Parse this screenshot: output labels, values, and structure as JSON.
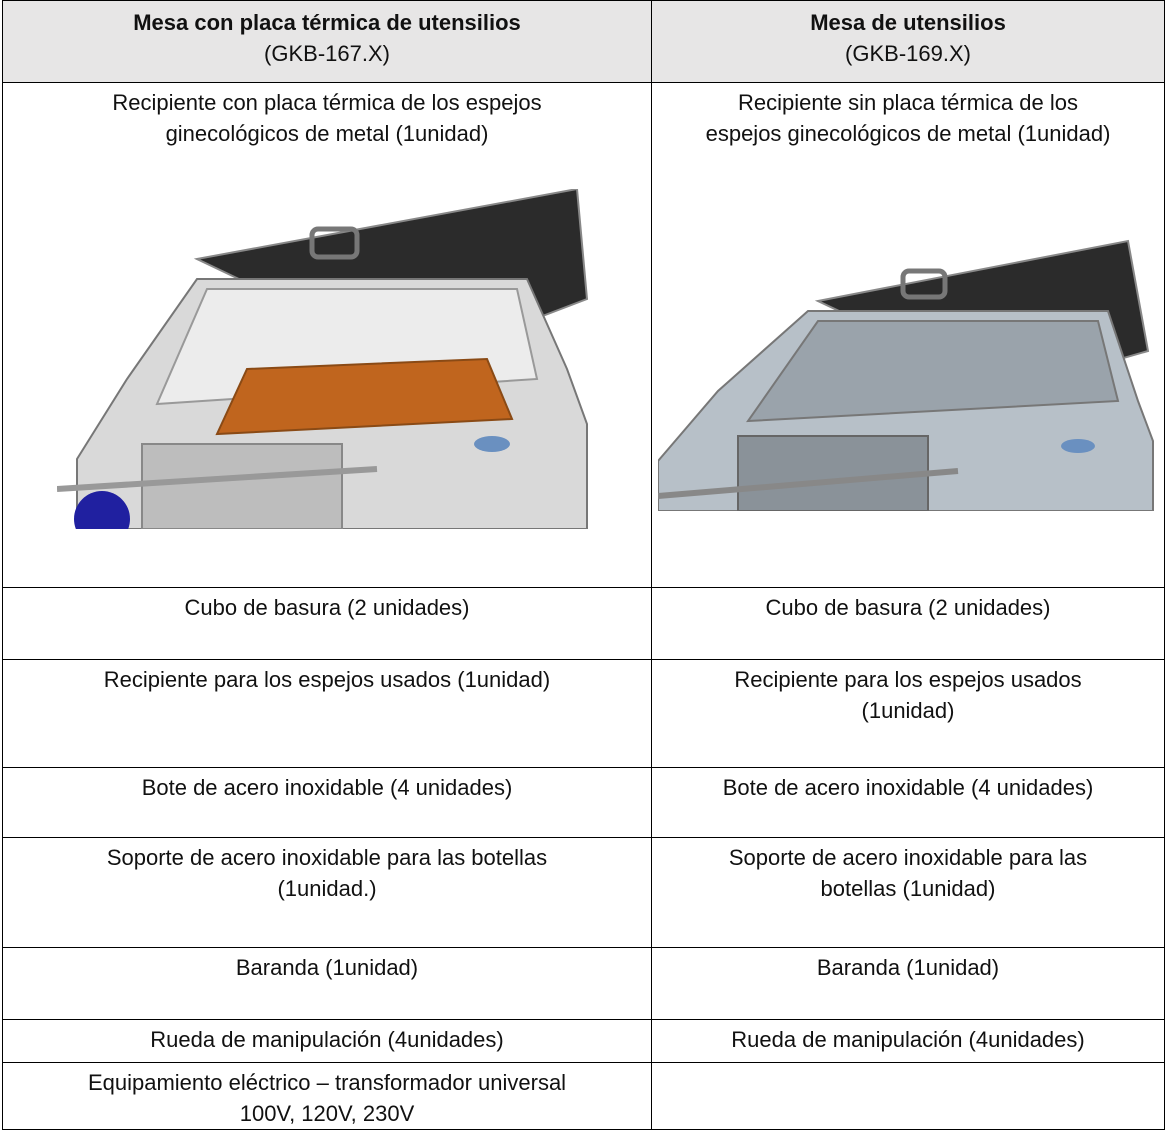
{
  "table": {
    "header": [
      {
        "title": "Mesa  con placa térmica de utensilios",
        "subtitle": "(GKB-167.X)"
      },
      {
        "title": "Mesa de utensilios",
        "subtitle": "(GKB-169.X)"
      }
    ],
    "rows": [
      [
        [
          "Recipiente con placa térmica de los espejos",
          "ginecológicos de metal (1unidad)"
        ],
        [
          "Recipiente sin placa térmica de los",
          "espejos ginecológicos de metal (1unidad)"
        ]
      ],
      [
        [
          "Cubo de basura (2 unidades)"
        ],
        [
          "Cubo de basura (2 unidades)"
        ]
      ],
      [
        [
          "Recipiente para los espejos usados (1unidad)"
        ],
        [
          "Recipiente para los espejos usados",
          "(1unidad)"
        ]
      ],
      [
        [
          "Bote de acero inoxidable (4 unidades)"
        ],
        [
          "Bote de acero inoxidable (4 unidades)"
        ]
      ],
      [
        [
          "Soporte de acero inoxidable para las botellas",
          "(1unidad.)"
        ],
        [
          "Soporte de acero inoxidable para las",
          "botellas (1unidad)"
        ]
      ],
      [
        [
          "Baranda (1unidad)"
        ],
        [
          "Baranda (1unidad)"
        ]
      ],
      [
        [
          "Rueda de manipulación (4unidades)"
        ],
        [
          "Rueda de manipulación (4unidades)"
        ]
      ],
      [
        [
          "Equipamiento eléctrico – transformador universal",
          "100V, 120V, 230V"
        ]
      ]
    ]
  }
}
